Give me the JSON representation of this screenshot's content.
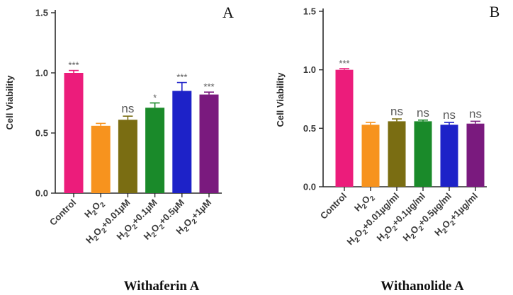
{
  "chart_data": [
    {
      "type": "bar",
      "panel_label": "A",
      "caption": "Withaferin A",
      "ylabel": "Cell Viability",
      "ylim": [
        0,
        1.5
      ],
      "yticks": [
        "0.0",
        "0.5",
        "1.0",
        "1.5"
      ],
      "grid": false,
      "categories": [
        {
          "base": "Control",
          "sub": "",
          "suffix": ""
        },
        {
          "base": "H",
          "sub": "2",
          "mid": "O",
          "sub2": "2",
          "suffix": ""
        },
        {
          "base": "H",
          "sub": "2",
          "mid": "O",
          "sub2": "2",
          "suffix": "+0.01µM"
        },
        {
          "base": "H",
          "sub": "2",
          "mid": "O",
          "sub2": "2",
          "suffix": "+0.1µM"
        },
        {
          "base": "H",
          "sub": "2",
          "mid": "O",
          "sub2": "2",
          "suffix": "+0.5µM"
        },
        {
          "base": "H",
          "sub": "2",
          "mid": "O",
          "sub2": "2",
          "suffix": "+1µM"
        }
      ],
      "values": [
        1.0,
        0.56,
        0.61,
        0.71,
        0.85,
        0.82
      ],
      "errors": [
        0.02,
        0.02,
        0.03,
        0.04,
        0.07,
        0.02
      ],
      "significance": [
        "***",
        "",
        "ns",
        "*",
        "***",
        "***"
      ],
      "colors": [
        "#ec1c7b",
        "#f7931e",
        "#7a6d12",
        "#1a8a2a",
        "#1d22c8",
        "#7a1a7e"
      ]
    },
    {
      "type": "bar",
      "panel_label": "B",
      "caption": "Withanolide A",
      "ylabel": "Cell Viability",
      "ylim": [
        0,
        1.5
      ],
      "yticks": [
        "0.0",
        "0.5",
        "1.0",
        "1.5"
      ],
      "grid": false,
      "categories": [
        {
          "base": "Control",
          "sub": "",
          "suffix": ""
        },
        {
          "base": "H",
          "sub": "2",
          "mid": "O",
          "sub2": "2",
          "suffix": ""
        },
        {
          "base": "H",
          "sub": "2",
          "mid": "O",
          "sub2": "2",
          "suffix": "+0.01µg/ml"
        },
        {
          "base": "H",
          "sub": "2",
          "mid": "O",
          "sub2": "2",
          "suffix": "+0.1µg/ml"
        },
        {
          "base": "H",
          "sub": "2",
          "mid": "O",
          "sub2": "2",
          "suffix": "+0.5µg/ml"
        },
        {
          "base": "H",
          "sub": "2",
          "mid": "O",
          "sub2": "2",
          "suffix": "+1µg/ml"
        }
      ],
      "values": [
        1.0,
        0.53,
        0.56,
        0.56,
        0.53,
        0.54
      ],
      "errors": [
        0.01,
        0.02,
        0.02,
        0.01,
        0.02,
        0.02
      ],
      "significance": [
        "***",
        "",
        "ns",
        "ns",
        "ns",
        "ns"
      ],
      "colors": [
        "#ec1c7b",
        "#f7931e",
        "#7a6d12",
        "#1a8a2a",
        "#1d22c8",
        "#7a1a7e"
      ]
    }
  ]
}
